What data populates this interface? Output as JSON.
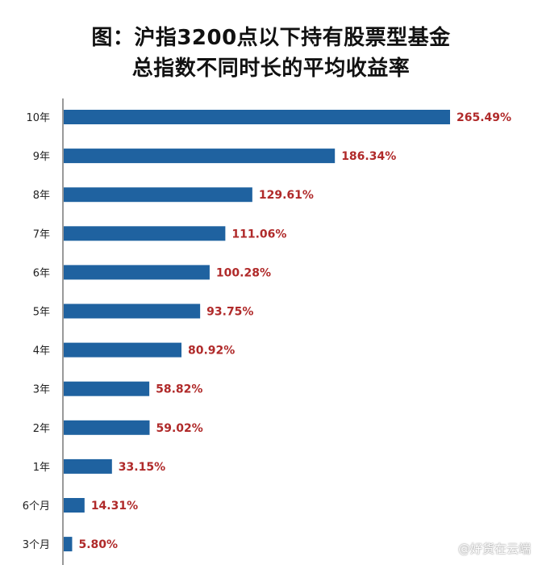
{
  "chart_data": {
    "type": "bar",
    "orientation": "horizontal",
    "title_lines": [
      "图：沪指3200点以下持有股票型基金",
      "总指数不同时长的平均收益率"
    ],
    "categories": [
      "10年",
      "9年",
      "8年",
      "7年",
      "6年",
      "5年",
      "4年",
      "3年",
      "2年",
      "1年",
      "6个月",
      "3个月"
    ],
    "values": [
      265.49,
      186.34,
      129.61,
      111.06,
      100.28,
      93.75,
      80.92,
      58.82,
      59.02,
      33.15,
      14.31,
      5.8
    ],
    "value_labels": [
      "265.49%",
      "186.34%",
      "129.61%",
      "111.06%",
      "100.28%",
      "93.75%",
      "80.92%",
      "58.82%",
      "59.02%",
      "33.15%",
      "14.31%",
      "5.80%"
    ],
    "bar_color": "#1f62a0",
    "label_color": "#b02a2a",
    "xlim": [
      0,
      265.49
    ],
    "grid": false,
    "legend": "none"
  },
  "watermark": "@好货在云端"
}
